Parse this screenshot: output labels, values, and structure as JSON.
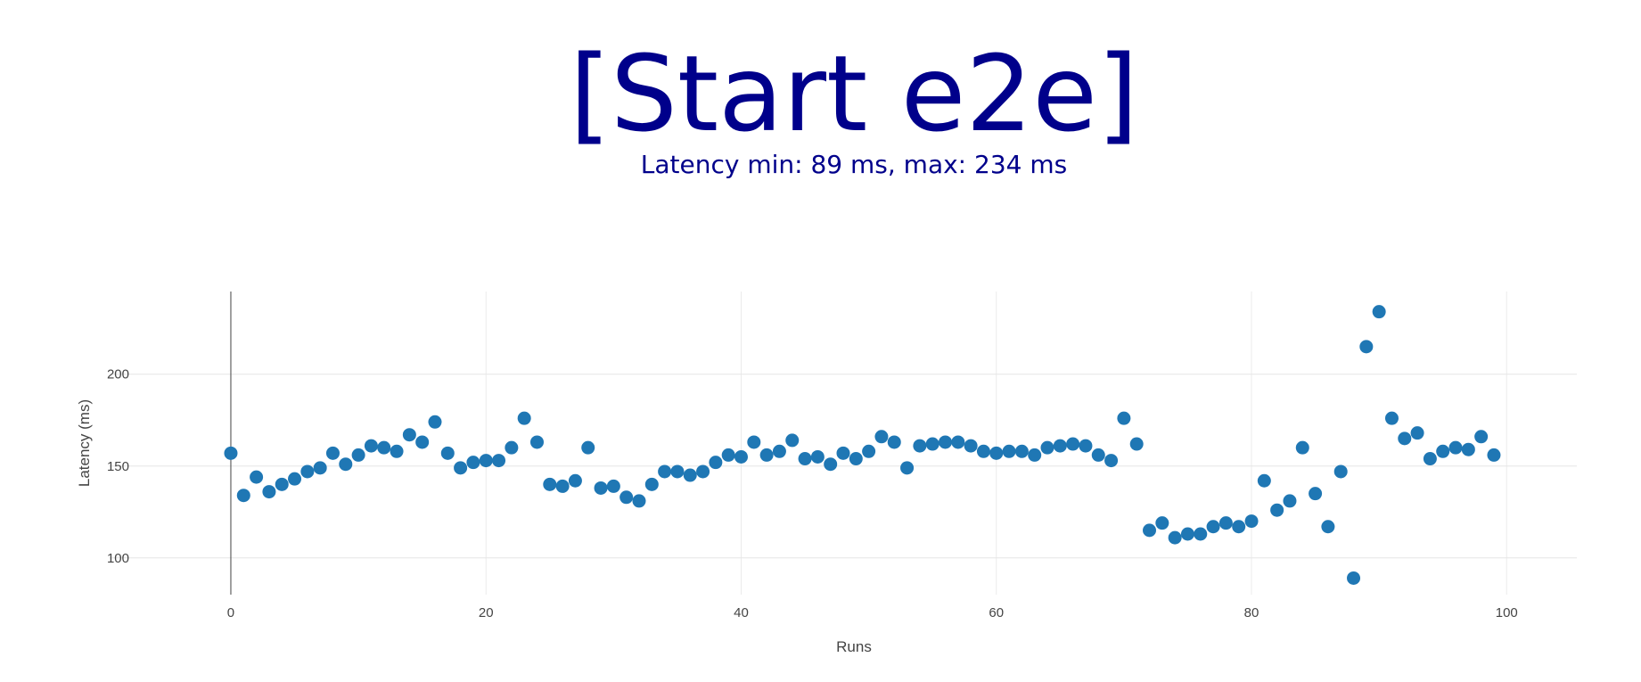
{
  "chart_data": {
    "type": "scatter",
    "title": "[Start e2e]",
    "subtitle": "Latency min: 89 ms, max: 234 ms",
    "xlabel": "Runs",
    "ylabel": "Latency (ms)",
    "xlim": [
      -9.5,
      105.5
    ],
    "ylim": [
      80,
      245
    ],
    "x_ticks": [
      0,
      20,
      40,
      60,
      80,
      100
    ],
    "y_ticks": [
      100,
      150,
      200
    ],
    "grid": true,
    "legend": "none",
    "marker_color": "#1f77b4",
    "title_color": "#00008b",
    "series": [
      {
        "x": [
          0,
          1,
          2,
          3,
          4,
          5,
          6,
          7,
          8,
          9,
          10,
          11,
          12,
          13,
          14,
          15,
          16,
          17,
          18,
          19,
          20,
          21,
          22,
          23,
          24,
          25,
          26,
          27,
          28,
          29,
          30,
          31,
          32,
          33,
          34,
          35,
          36,
          37,
          38,
          39,
          40,
          41,
          42,
          43,
          44,
          45,
          46,
          47,
          48,
          49,
          50,
          51,
          52,
          53,
          54,
          55,
          56,
          57,
          58,
          59,
          60,
          61,
          62,
          63,
          64,
          65,
          66,
          67,
          68,
          69,
          70,
          71,
          72,
          73,
          74,
          75,
          76,
          77,
          78,
          79,
          80,
          81,
          82,
          83,
          84,
          85,
          86,
          87,
          88,
          89,
          90,
          91,
          92,
          93,
          94,
          95,
          96,
          97,
          98,
          99
        ],
        "y": [
          157,
          134,
          144,
          136,
          140,
          143,
          147,
          149,
          157,
          151,
          156,
          161,
          160,
          158,
          167,
          163,
          174,
          157,
          149,
          152,
          153,
          153,
          160,
          176,
          163,
          140,
          139,
          142,
          160,
          138,
          139,
          133,
          131,
          140,
          147,
          147,
          145,
          147,
          152,
          156,
          155,
          163,
          156,
          158,
          164,
          154,
          155,
          151,
          157,
          154,
          158,
          166,
          163,
          149,
          161,
          162,
          163,
          163,
          161,
          158,
          157,
          158,
          158,
          156,
          160,
          161,
          162,
          161,
          156,
          153,
          176,
          162,
          115,
          119,
          111,
          113,
          113,
          117,
          119,
          117,
          120,
          142,
          126,
          131,
          160,
          135,
          117,
          147,
          89,
          215,
          234,
          176,
          165,
          168,
          154,
          158,
          160,
          159,
          166,
          156
        ]
      }
    ]
  }
}
